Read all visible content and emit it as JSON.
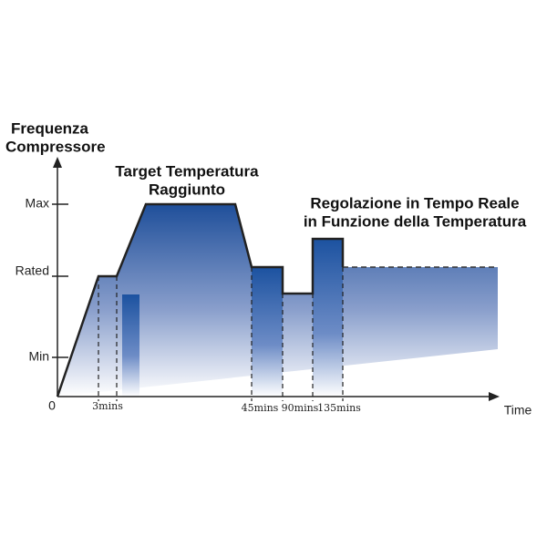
{
  "y_axis": {
    "title": [
      "Frequenza",
      "Compressore"
    ],
    "labels": [
      "Max",
      "Rated",
      "Min"
    ],
    "origin": "0"
  },
  "x_axis": {
    "title": "Time",
    "labels": [
      "3mins",
      "45mins",
      "90mins",
      "135mins"
    ]
  },
  "annotations": [
    [
      "Target Temperatura",
      "Raggiunto"
    ],
    [
      "Regolazione in Tempo Reale",
      "in Funzione della Temperatura"
    ]
  ]
}
